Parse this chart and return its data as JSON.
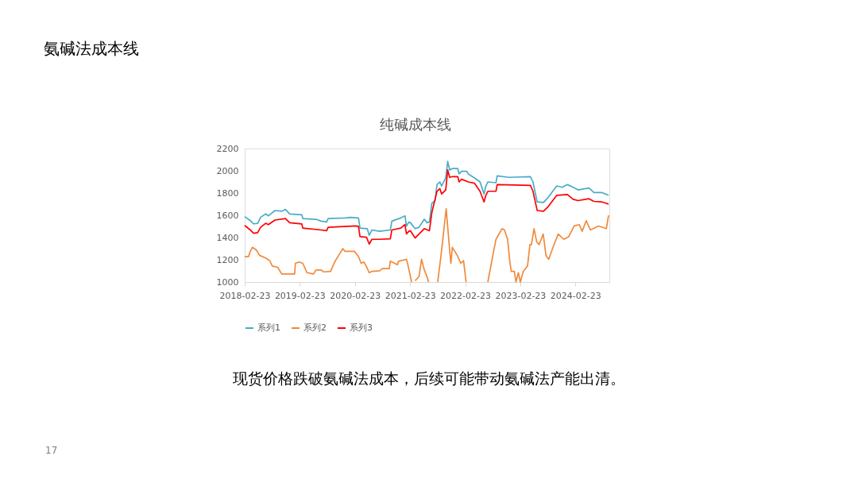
{
  "chart_data": {
    "type": "line",
    "title": "纯碱成本线",
    "annotations": [
      "氨碱法成本线",
      "现货价格跌破氨碱法成本，后续可能带动氨碱法产能出清。",
      "17"
    ],
    "xlim": [
      "2018-02-23",
      "2024-10-05"
    ],
    "xticks": [
      "2018-02-23",
      "2019-02-23",
      "2020-02-23",
      "2021-02-23",
      "2022-02-23",
      "2023-02-23",
      "2024-02-23"
    ],
    "ylim": [
      1000,
      2200
    ],
    "yticks": [
      1000,
      1200,
      1400,
      1600,
      1800,
      2000,
      2200
    ],
    "grid": false,
    "legend": "bottom",
    "line_style": "solid",
    "marker": "none",
    "series": [
      {
        "name": "系列1",
        "color": "#4bacc6",
        "x": [
          "2018-02-23",
          "2018-04-01",
          "2018-04-23",
          "2018-05-20",
          "2018-06-08",
          "2018-07-12",
          "2018-07-30",
          "2018-09-12",
          "2018-10-26",
          "2018-11-20",
          "2018-12-18",
          "2019-03-08",
          "2019-03-15",
          "2019-06-10",
          "2019-07-15",
          "2019-08-20",
          "2019-08-30",
          "2019-12-20",
          "2020-01-25",
          "2020-03-18",
          "2020-03-28",
          "2020-05-15",
          "2020-05-28",
          "2020-06-15",
          "2020-08-05",
          "2020-10-15",
          "2020-10-25",
          "2020-12-23",
          "2021-01-20",
          "2021-01-30",
          "2021-02-15",
          "2021-02-25",
          "2021-03-28",
          "2021-04-23",
          "2021-05-28",
          "2021-06-15",
          "2021-07-01",
          "2021-07-17",
          "2021-08-08",
          "2021-08-20",
          "2021-09-08",
          "2021-09-20",
          "2021-10-17",
          "2021-10-30",
          "2021-11-12",
          "2021-11-30",
          "2022-01-05",
          "2022-01-13",
          "2022-01-30",
          "2022-03-05",
          "2022-03-15",
          "2022-04-26",
          "2022-06-01",
          "2022-06-28",
          "2022-07-10",
          "2022-07-23",
          "2022-09-15",
          "2022-09-23",
          "2022-12-10",
          "2023-05-01",
          "2023-05-18",
          "2023-06-15",
          "2023-07-27",
          "2023-08-23",
          "2023-10-23",
          "2023-11-28",
          "2024-01-01",
          "2024-02-08",
          "2024-03-12",
          "2024-05-23",
          "2024-06-25",
          "2024-08-17",
          "2024-09-30"
        ],
        "values": [
          1588,
          1552,
          1523,
          1528,
          1581,
          1612,
          1595,
          1643,
          1636,
          1653,
          1612,
          1605,
          1571,
          1564,
          1547,
          1540,
          1571,
          1576,
          1581,
          1576,
          1485,
          1480,
          1420,
          1468,
          1456,
          1468,
          1547,
          1576,
          1595,
          1504,
          1540,
          1533,
          1480,
          1492,
          1564,
          1533,
          1540,
          1708,
          1732,
          1876,
          1900,
          1864,
          1936,
          2085,
          2008,
          2020,
          2020,
          1972,
          1996,
          1996,
          1972,
          1936,
          1900,
          1792,
          1864,
          1900,
          1893,
          1955,
          1941,
          1948,
          1900,
          1720,
          1715,
          1756,
          1864,
          1852,
          1876,
          1852,
          1828,
          1845,
          1804,
          1804,
          1780
        ]
      },
      {
        "name": "系列2",
        "color": "#f08a3c",
        "x": [
          "2018-02-23",
          "2018-03-20",
          "2018-04-01",
          "2018-04-15",
          "2018-05-12",
          "2018-06-01",
          "2018-07-12",
          "2018-08-08",
          "2018-08-25",
          "2018-09-30",
          "2018-10-26",
          "2019-01-20",
          "2019-01-25",
          "2019-02-20",
          "2019-03-15",
          "2019-04-12",
          "2019-05-25",
          "2019-06-10",
          "2019-07-15",
          "2019-08-01",
          "2019-09-15",
          "2019-10-12",
          "2019-11-08",
          "2019-12-05",
          "2019-12-20",
          "2020-02-20",
          "2020-03-18",
          "2020-04-05",
          "2020-04-22",
          "2020-05-08",
          "2020-05-28",
          "2020-06-15",
          "2020-08-05",
          "2020-08-23",
          "2020-10-08",
          "2020-10-15",
          "2020-12-01",
          "2020-12-08",
          "2021-01-30",
          "2021-02-08",
          "2021-03-05",
          "2021-03-18",
          "2021-03-28",
          "2021-04-23",
          "2021-05-10",
          "2021-05-28",
          "2021-06-15",
          "2021-06-25",
          "2021-08-01",
          "2021-08-25",
          "2021-09-20",
          "2021-10-20",
          "2021-11-12",
          "2021-11-20",
          "2021-11-30",
          "2022-01-01",
          "2022-01-25",
          "2022-02-12",
          "2022-03-01",
          "2022-06-01",
          "2022-07-23",
          "2022-09-01",
          "2022-09-15",
          "2022-10-25",
          "2022-11-10",
          "2022-12-01",
          "2022-12-15",
          "2022-12-25",
          "2023-01-15",
          "2023-01-25",
          "2023-02-10",
          "2023-02-23",
          "2023-03-15",
          "2023-04-12",
          "2023-04-28",
          "2023-05-08",
          "2023-05-25",
          "2023-06-12",
          "2023-06-28",
          "2023-07-25",
          "2023-08-12",
          "2023-08-30",
          "2023-09-28",
          "2023-11-01",
          "2023-12-08",
          "2024-01-10",
          "2024-02-15",
          "2024-03-20",
          "2024-04-08",
          "2024-05-05",
          "2024-06-01",
          "2024-07-25",
          "2024-09-15",
          "2024-09-30"
        ],
        "values": [
          1228,
          1228,
          1276,
          1312,
          1288,
          1240,
          1216,
          1192,
          1144,
          1132,
          1072,
          1072,
          1168,
          1180,
          1168,
          1084,
          1072,
          1108,
          1108,
          1091,
          1096,
          1180,
          1240,
          1300,
          1276,
          1276,
          1228,
          1168,
          1180,
          1144,
          1084,
          1096,
          1101,
          1120,
          1120,
          1187,
          1156,
          1187,
          1204,
          1156,
          1000,
          null,
          1012,
          1048,
          1204,
          1108,
          1048,
          1000,
          null,
          1000,
          1288,
          1660,
          1288,
          1168,
          1312,
          1240,
          1168,
          1192,
          1000,
          null,
          1000,
          1288,
          1384,
          1480,
          1468,
          1384,
          1192,
          1096,
          1096,
          1000,
          1084,
          1000,
          1096,
          1144,
          1336,
          1336,
          1480,
          1360,
          1336,
          1432,
          1240,
          1204,
          1312,
          1432,
          1384,
          1408,
          1504,
          1516,
          1456,
          1552,
          1468,
          1504,
          1480,
          1600
        ]
      },
      {
        "name": "系列3",
        "color": "#ff0000",
        "x": [
          "2018-02-23",
          "2018-04-01",
          "2018-04-23",
          "2018-05-20",
          "2018-06-08",
          "2018-07-12",
          "2018-07-30",
          "2018-09-12",
          "2018-11-20",
          "2018-12-18",
          "2019-03-08",
          "2019-03-15",
          "2019-07-15",
          "2019-08-20",
          "2019-08-30",
          "2020-03-01",
          "2020-03-18",
          "2020-03-28",
          "2020-05-10",
          "2020-05-28",
          "2020-06-15",
          "2020-08-05",
          "2020-10-15",
          "2020-10-25",
          "2020-12-23",
          "2021-01-20",
          "2021-01-30",
          "2021-02-15",
          "2021-02-25",
          "2021-03-28",
          "2021-05-28",
          "2021-07-01",
          "2021-07-17",
          "2021-08-20",
          "2021-09-08",
          "2021-09-20",
          "2021-10-17",
          "2021-10-30",
          "2021-11-12",
          "2021-11-30",
          "2022-01-05",
          "2022-01-13",
          "2022-01-30",
          "2022-03-15",
          "2022-04-26",
          "2022-06-01",
          "2022-06-28",
          "2022-07-10",
          "2022-07-23",
          "2022-09-15",
          "2022-09-23",
          "2023-05-01",
          "2023-05-18",
          "2023-06-15",
          "2023-07-27",
          "2023-08-23",
          "2023-10-23",
          "2024-01-01",
          "2024-02-08",
          "2024-03-12",
          "2024-05-23",
          "2024-06-25",
          "2024-08-17",
          "2024-09-30"
        ],
        "values": [
          1509,
          1468,
          1439,
          1444,
          1492,
          1528,
          1516,
          1557,
          1571,
          1533,
          1523,
          1485,
          1468,
          1461,
          1492,
          1504,
          1499,
          1408,
          1403,
          1341,
          1384,
          1384,
          1389,
          1468,
          1485,
          1516,
          1432,
          1456,
          1461,
          1396,
          1480,
          1461,
          1624,
          1816,
          1840,
          1792,
          1828,
          2008,
          1941,
          1948,
          1948,
          1900,
          1924,
          1900,
          1888,
          1816,
          1720,
          1780,
          1816,
          1816,
          1876,
          1869,
          1816,
          1643,
          1636,
          1672,
          1780,
          1787,
          1744,
          1732,
          1749,
          1725,
          1720,
          1701
        ]
      }
    ]
  }
}
